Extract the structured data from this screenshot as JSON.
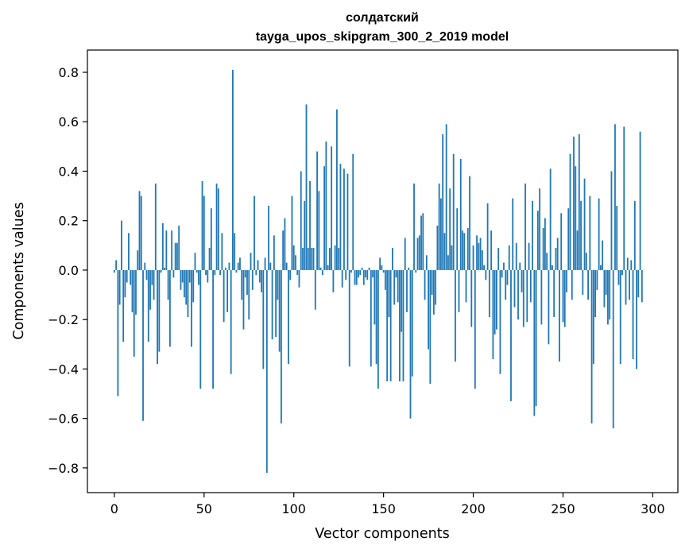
{
  "chart_data": {
    "type": "bar",
    "title_line1": "солдатский",
    "title_line2": "tayga_upos_skipgram_300_2_2019 model",
    "xlabel": "Vector components",
    "ylabel": "Components values",
    "xlim": [
      -15,
      314
    ],
    "ylim": [
      -0.9,
      0.89
    ],
    "x_ticks": [
      0,
      50,
      100,
      150,
      200,
      250,
      300
    ],
    "x_tick_labels": [
      "0",
      "50",
      "100",
      "150",
      "200",
      "250",
      "300"
    ],
    "y_ticks": [
      -0.8,
      -0.6,
      -0.4,
      -0.2,
      0.0,
      0.2,
      0.4,
      0.6,
      0.8
    ],
    "y_tick_labels": [
      "−0.8",
      "−0.6",
      "−0.4",
      "−0.2",
      "0.0",
      "0.2",
      "0.4",
      "0.6",
      "0.8"
    ],
    "bar_color": "#1f77b4",
    "grid": false,
    "values": [
      -0.01,
      0.04,
      -0.51,
      -0.14,
      0.2,
      -0.29,
      -0.11,
      -0.05,
      0.15,
      -0.06,
      -0.17,
      -0.35,
      -0.18,
      0.08,
      0.32,
      0.3,
      -0.61,
      0.03,
      -0.04,
      -0.29,
      -0.16,
      -0.06,
      -0.12,
      0.35,
      -0.38,
      -0.33,
      -0.01,
      0.19,
      0.01,
      0.16,
      -0.12,
      -0.31,
      0.16,
      -0.03,
      0.11,
      0.11,
      0.18,
      -0.08,
      -0.05,
      -0.11,
      -0.14,
      -0.19,
      -0.05,
      -0.31,
      -0.13,
      0.07,
      -0.01,
      -0.06,
      -0.48,
      0.36,
      0.3,
      -0.02,
      -0.05,
      0.09,
      0.25,
      -0.48,
      -0.02,
      0.35,
      0.33,
      -0.02,
      0.15,
      -0.21,
      0.01,
      -0.17,
      0.03,
      -0.42,
      0.81,
      0.15,
      -0.01,
      0.03,
      0.05,
      -0.12,
      -0.24,
      -0.03,
      -0.1,
      -0.2,
      0.07,
      -0.08,
      0.3,
      -0.02,
      0.04,
      -0.05,
      -0.09,
      -0.4,
      0.05,
      -0.82,
      0.26,
      0.03,
      -0.28,
      0.14,
      -0.27,
      -0.12,
      -0.33,
      -0.62,
      0.16,
      0.21,
      0.03,
      -0.38,
      -0.04,
      0.3,
      0.1,
      0.06,
      -0.02,
      -0.07,
      0.4,
      0.09,
      0.28,
      0.67,
      0.09,
      0.36,
      0.09,
      0.09,
      -0.16,
      0.48,
      0.32,
      0.01,
      -0.02,
      0.42,
      0.52,
      0.02,
      0.09,
      0.5,
      -0.09,
      0.1,
      0.65,
      0.09,
      0.43,
      -0.07,
      0.41,
      -0.04,
      0.39,
      -0.39,
      -0.01,
      0.47,
      -0.06,
      -0.06,
      -0.03,
      -0.02,
      0.01,
      -0.06,
      -0.03,
      -0.04,
      0.01,
      -0.39,
      -0.03,
      -0.22,
      -0.38,
      -0.48,
      0.05,
      0.02,
      -0.01,
      -0.08,
      -0.45,
      -0.19,
      -0.45,
      0.09,
      -0.14,
      -0.03,
      -0.13,
      -0.45,
      -0.25,
      -0.45,
      0.13,
      -0.17,
      0.01,
      -0.6,
      -0.43,
      0.35,
      -0.01,
      0.13,
      0.14,
      0.22,
      0.23,
      -0.12,
      0.06,
      -0.32,
      -0.46,
      -0.1,
      -0.18,
      -0.14,
      0.18,
      0.35,
      0.29,
      0.55,
      0.15,
      0.59,
      0.06,
      0.33,
      0.1,
      0.47,
      -0.37,
      0.25,
      -0.17,
      0.45,
      0.16,
      0.15,
      -0.13,
      0.17,
      0.38,
      -0.23,
      0.1,
      -0.48,
      0.14,
      0.11,
      0.13,
      0.08,
      0.02,
      -0.04,
      0.27,
      -0.19,
      0.16,
      -0.36,
      -0.26,
      -0.24,
      0.09,
      -0.42,
      -0.03,
      0.03,
      -0.12,
      -0.06,
      0.1,
      -0.53,
      0.29,
      -0.15,
      0.11,
      -0.2,
      0.03,
      -0.09,
      -0.23,
      0.35,
      -0.21,
      0.11,
      -0.13,
      0.28,
      -0.59,
      -0.55,
      0.24,
      0.33,
      -0.22,
      0.17,
      0.21,
      0.07,
      -0.3,
      0.41,
      0.02,
      -0.19,
      0.09,
      0.13,
      -0.37,
      0.23,
      -0.21,
      -0.23,
      -0.09,
      0.25,
      0.47,
      -0.12,
      0.54,
      0.42,
      0.16,
      0.55,
      0.28,
      -0.1,
      0.37,
      0.07,
      -0.12,
      0.3,
      -0.62,
      -0.38,
      -0.19,
      -0.08,
      0.29,
      0.02,
      0.12,
      -0.15,
      -0.1,
      -0.22,
      -0.2,
      0.4,
      -0.64,
      0.59,
      0.26,
      -0.06,
      -0.38,
      -0.02,
      0.58,
      -0.14,
      0.05,
      -0.12,
      0.04,
      -0.36,
      0.28,
      -0.4,
      -0.11,
      0.56,
      -0.13
    ]
  }
}
